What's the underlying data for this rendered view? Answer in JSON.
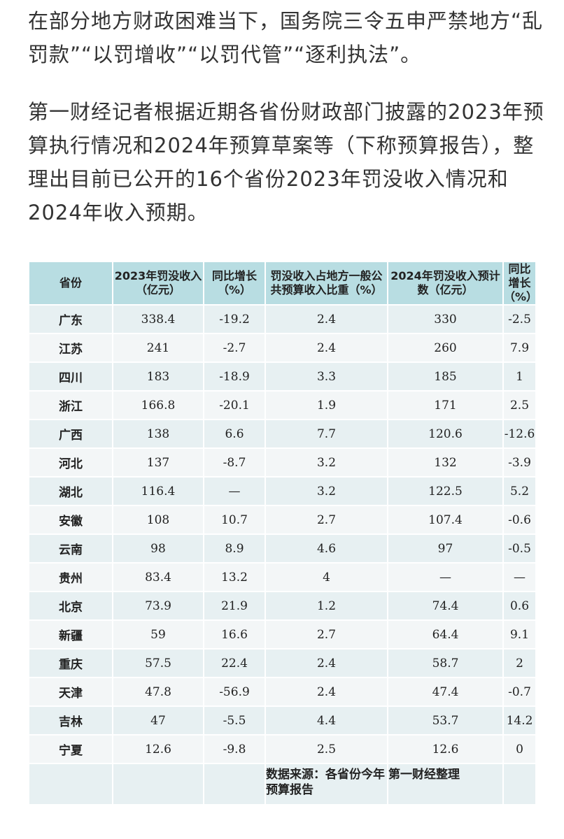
{
  "paragraphs": [
    "在部分地方财政困难当下，国务院三令五申严禁地方“乱罚款”“以罚增收”“以罚代管”“逐利执法”。",
    "第一财经记者根据近期各省份财政部门披露的2023年预算执行情况和2024年预算草案等（下称预算报告），整理出目前已公开的16个省份2023年罚没收入情况和2024年收入预期。"
  ],
  "table": {
    "headers": [
      "省份",
      "2023年罚没收入（亿元）",
      "同比增长（%）",
      "罚没收入占地方一般公共预算收入比重（%）",
      "2024年罚没收入预计数（亿元）",
      "同比增长（%）"
    ],
    "rows": [
      [
        "广东",
        "338.4",
        "-19.2",
        "2.4",
        "330",
        "-2.5"
      ],
      [
        "江苏",
        "241",
        "-2.7",
        "2.4",
        "260",
        "7.9"
      ],
      [
        "四川",
        "183",
        "-18.9",
        "3.3",
        "185",
        "1"
      ],
      [
        "浙江",
        "166.8",
        "-20.1",
        "1.9",
        "171",
        "2.5"
      ],
      [
        "广西",
        "138",
        "6.6",
        "7.7",
        "120.6",
        "-12.6"
      ],
      [
        "河北",
        "137",
        "-8.7",
        "3.2",
        "132",
        "-3.9"
      ],
      [
        "湖北",
        "116.4",
        "—",
        "3.2",
        "122.5",
        "5.2"
      ],
      [
        "安徽",
        "108",
        "10.7",
        "2.7",
        "107.4",
        "-0.6"
      ],
      [
        "云南",
        "98",
        "8.9",
        "4.6",
        "97",
        "-0.5"
      ],
      [
        "贵州",
        "83.4",
        "13.2",
        "4",
        "—",
        "—"
      ],
      [
        "北京",
        "73.9",
        "21.9",
        "1.2",
        "74.4",
        "0.6"
      ],
      [
        "新疆",
        "59",
        "16.6",
        "2.7",
        "64.4",
        "9.1"
      ],
      [
        "重庆",
        "57.5",
        "22.4",
        "2.4",
        "58.7",
        "2"
      ],
      [
        "天津",
        "47.8",
        "-56.9",
        "2.4",
        "47.4",
        "-0.7"
      ],
      [
        "吉林",
        "47",
        "-5.5",
        "4.4",
        "53.7",
        "14.2"
      ],
      [
        "宁夏",
        "12.6",
        "-9.8",
        "2.5",
        "12.6",
        "0"
      ]
    ],
    "source": "数据来源：各省份今年预算报告",
    "credit": "第一财经整理"
  },
  "colors": {
    "header_bg": "#b8dde2",
    "row_odd": "#e7f0f2",
    "row_even": "#f3f6f7",
    "text": "#333333"
  }
}
